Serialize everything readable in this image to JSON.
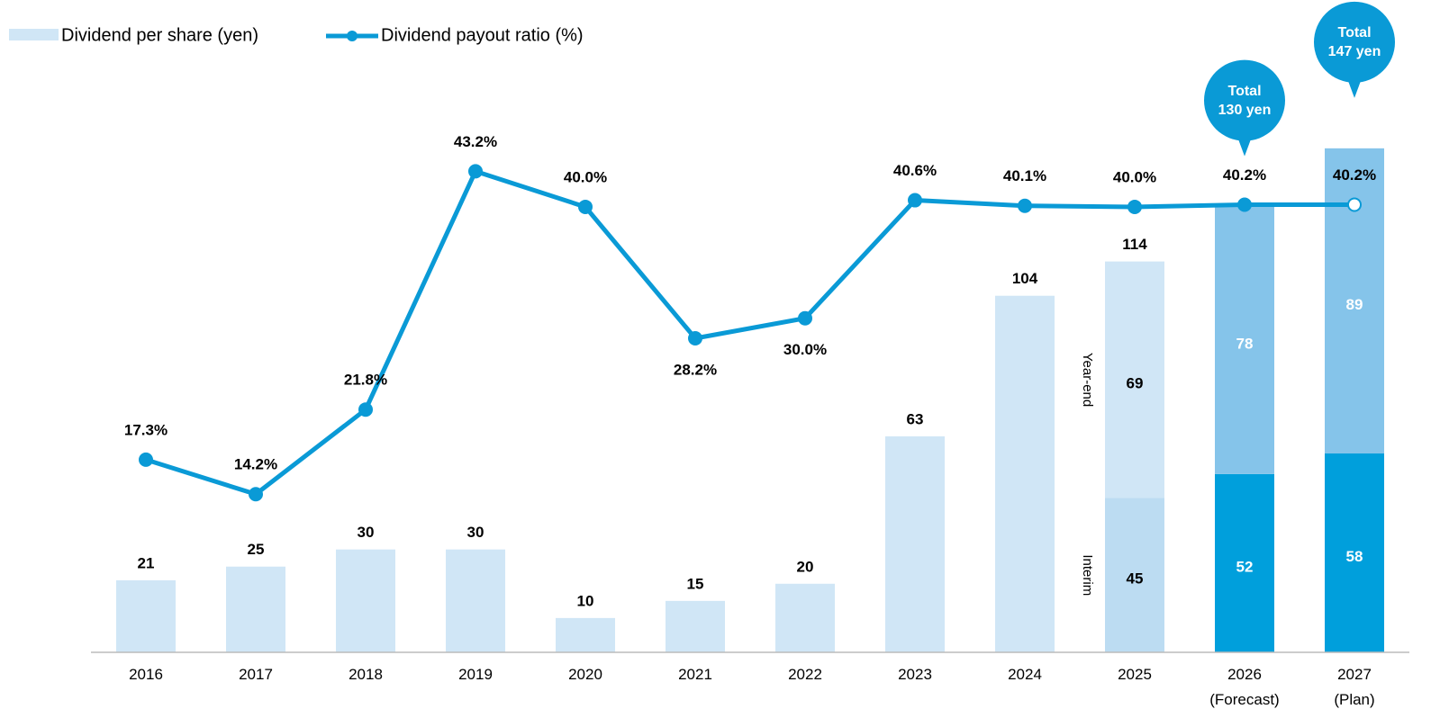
{
  "chart_data": {
    "type": "bar",
    "categories": [
      "2016",
      "2017",
      "2018",
      "2019",
      "2020",
      "2021",
      "2022",
      "2023",
      "2024",
      "2025",
      "2026\n(Forecast)",
      "2027\n(Plan)"
    ],
    "ylim": [
      0,
      190
    ],
    "y2lim": [
      0,
      58.5
    ],
    "series": [
      {
        "name": "Dividend per share (yen)",
        "type": "bar",
        "color": "#d0e6f6",
        "values": [
          21,
          25,
          30,
          30,
          10,
          15,
          20,
          63,
          104,
          114,
          130,
          147
        ],
        "value_labels": [
          "21",
          "25",
          "30",
          "30",
          "10",
          "15",
          "20",
          "63",
          "104",
          "114",
          "Total\n130 yen",
          "Total\n147 yen"
        ],
        "label_style": [
          "above",
          "above",
          "above",
          "above",
          "above",
          "above",
          "above",
          "above",
          "above",
          "above",
          "bubble",
          "bubble"
        ],
        "bubble_color": "#0a9ad6"
      },
      {
        "name": "Interim",
        "type": "segment",
        "values": [
          null,
          null,
          null,
          null,
          null,
          null,
          null,
          null,
          null,
          45,
          52,
          58
        ],
        "colors": [
          null,
          null,
          null,
          null,
          null,
          null,
          null,
          null,
          null,
          "#bcdcf2",
          "#009fdc",
          "#009fdc"
        ],
        "label_colors": [
          null,
          null,
          null,
          null,
          null,
          null,
          null,
          null,
          null,
          "#000000",
          "#ffffff",
          "#ffffff"
        ]
      },
      {
        "name": "Year-end",
        "type": "segment",
        "values": [
          null,
          null,
          null,
          null,
          null,
          null,
          null,
          null,
          null,
          69,
          78,
          89
        ],
        "colors": [
          null,
          null,
          null,
          null,
          null,
          null,
          null,
          null,
          null,
          "#d0e6f6",
          "#85c4ea",
          "#85c4ea"
        ],
        "label_colors": [
          null,
          null,
          null,
          null,
          null,
          null,
          null,
          null,
          null,
          "#000000",
          "#ffffff",
          "#ffffff"
        ]
      },
      {
        "name": "Dividend payout ratio (%)",
        "type": "line",
        "axis": "y2",
        "color": "#0a9ad6",
        "values": [
          17.3,
          14.2,
          21.8,
          43.2,
          40.0,
          28.2,
          30.0,
          40.6,
          40.1,
          40.0,
          40.2,
          40.2
        ],
        "value_labels": [
          "17.3%",
          "14.2%",
          "21.8%",
          "43.2%",
          "40.0%",
          "28.2%",
          "30.0%",
          "40.6%",
          "40.1%",
          "40.0%",
          "40.2%",
          "40.2%"
        ],
        "label_positions": [
          "above",
          "above",
          "above",
          "above",
          "above",
          "below",
          "below",
          "above",
          "above",
          "above",
          "above",
          "above"
        ],
        "marker_colors": [
          "#0a9ad6",
          "#0a9ad6",
          "#0a9ad6",
          "#0a9ad6",
          "#0a9ad6",
          "#0a9ad6",
          "#0a9ad6",
          "#0a9ad6",
          "#0a9ad6",
          "#0a9ad6",
          "#0a9ad6",
          "#ffffff"
        ]
      }
    ]
  }
}
